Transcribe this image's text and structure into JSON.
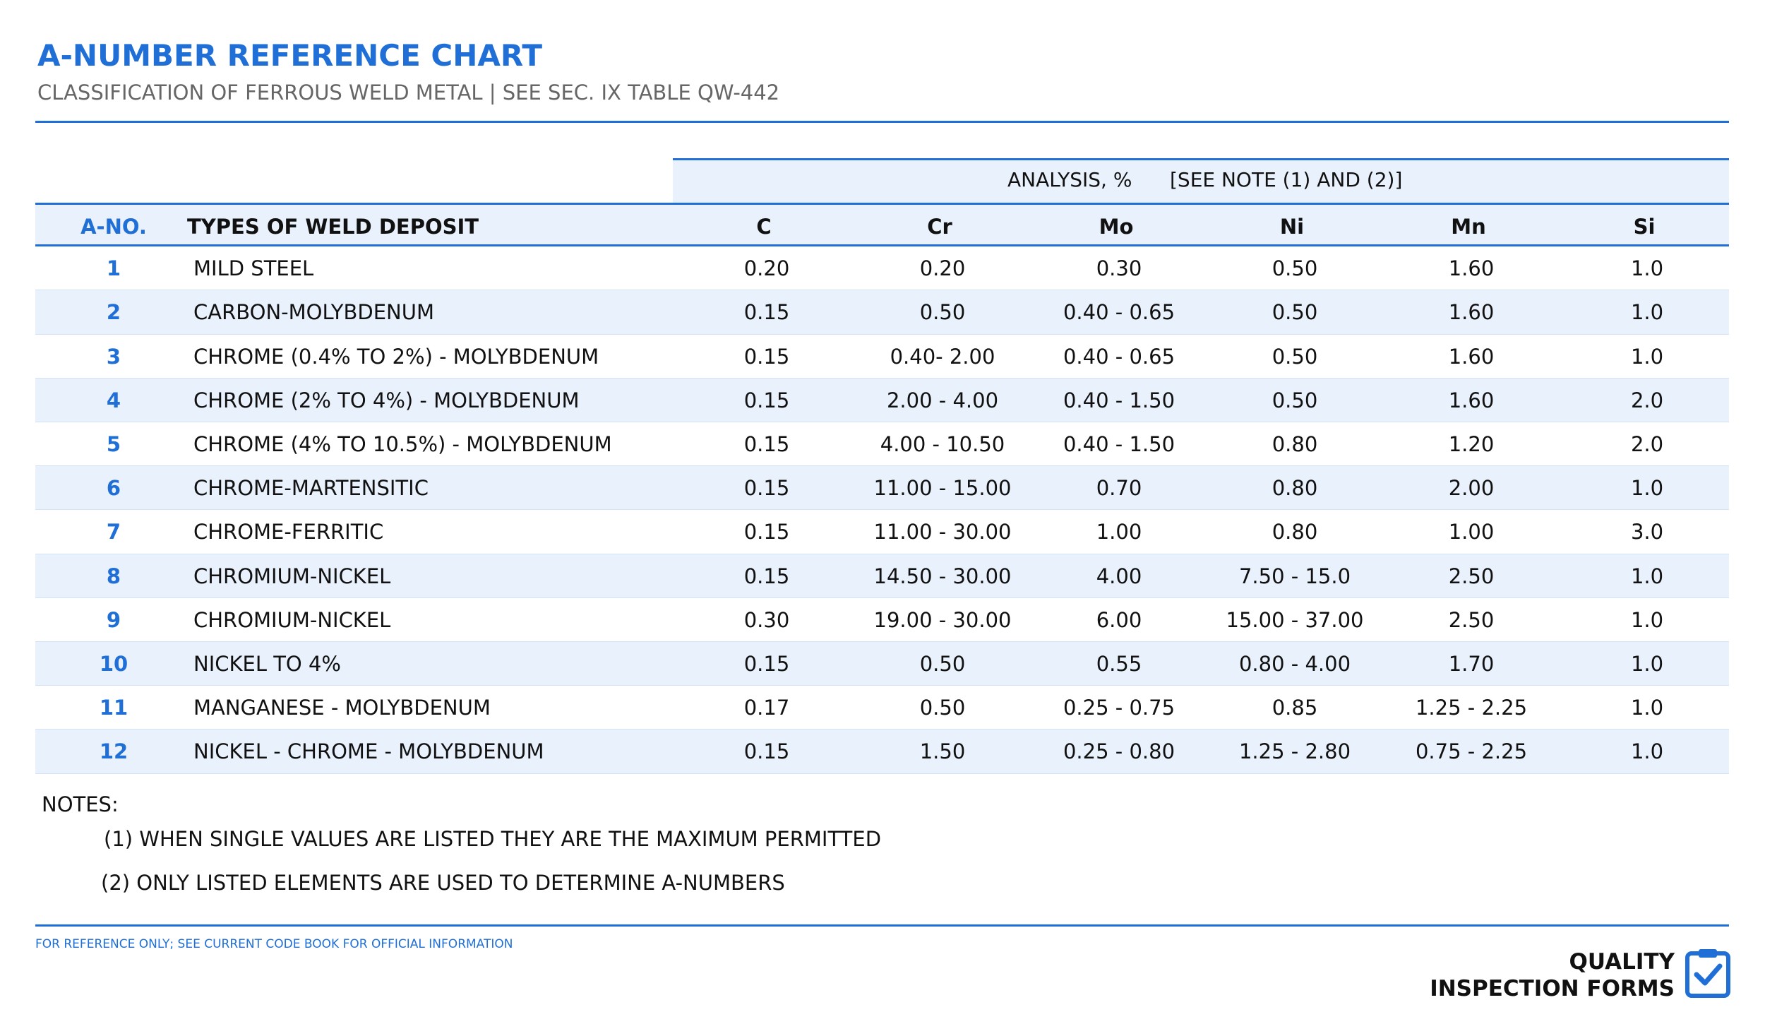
{
  "header": {
    "title": "A-NUMBER REFERENCE CHART",
    "subtitle": "CLASSIFICATION OF FERROUS WELD METAL | SEE SEC. IX TABLE QW-442"
  },
  "table": {
    "group_header": [
      "ANALYSIS, %",
      "[SEE NOTE (1) AND (2)]"
    ],
    "columns": [
      "A-NO.",
      "TYPES OF WELD DEPOSIT",
      "C",
      "Cr",
      "Mo",
      "Ni",
      "Mn",
      "Si"
    ],
    "rows": [
      [
        "1",
        "MILD STEEL",
        "0.20",
        "0.20",
        "0.30",
        "0.50",
        "1.60",
        "1.0"
      ],
      [
        "2",
        "CARBON-MOLYBDENUM",
        "0.15",
        "0.50",
        "0.40 - 0.65",
        "0.50",
        "1.60",
        "1.0"
      ],
      [
        "3",
        "CHROME (0.4% TO 2%) - MOLYBDENUM",
        "0.15",
        "0.40- 2.00",
        "0.40 - 0.65",
        "0.50",
        "1.60",
        "1.0"
      ],
      [
        "4",
        "CHROME (2% TO 4%) - MOLYBDENUM",
        "0.15",
        "2.00 - 4.00",
        "0.40 - 1.50",
        "0.50",
        "1.60",
        "2.0"
      ],
      [
        "5",
        "CHROME (4% TO 10.5%) - MOLYBDENUM",
        "0.15",
        "4.00 - 10.50",
        "0.40 - 1.50",
        "0.80",
        "1.20",
        "2.0"
      ],
      [
        "6",
        "CHROME-MARTENSITIC",
        "0.15",
        "11.00 - 15.00",
        "0.70",
        "0.80",
        "2.00",
        "1.0"
      ],
      [
        "7",
        "CHROME-FERRITIC",
        "0.15",
        "11.00 - 30.00",
        "1.00",
        "0.80",
        "1.00",
        "3.0"
      ],
      [
        "8",
        "CHROMIUM-NICKEL",
        "0.15",
        "14.50 - 30.00",
        "4.00",
        "7.50 - 15.0",
        "2.50",
        "1.0"
      ],
      [
        "9",
        "CHROMIUM-NICKEL",
        "0.30",
        "19.00 - 30.00",
        "6.00",
        "15.00 - 37.00",
        "2.50",
        "1.0"
      ],
      [
        "10",
        "NICKEL TO 4%",
        "0.15",
        "0.50",
        "0.55",
        "0.80 - 4.00",
        "1.70",
        "1.0"
      ],
      [
        "11",
        "MANGANESE - MOLYBDENUM",
        "0.17",
        "0.50",
        "0.25 - 0.75",
        "0.85",
        "1.25 - 2.25",
        "1.0"
      ],
      [
        "12",
        "NICKEL - CHROME - MOLYBDENUM",
        "0.15",
        "1.50",
        "0.25 - 0.80",
        "1.25 - 2.80",
        "0.75 - 2.25",
        "1.0"
      ]
    ]
  },
  "notes": {
    "title": "NOTES:",
    "items": [
      "(1) WHEN SINGLE VALUES ARE LISTED THEY ARE THE MAXIMUM PERMITTED",
      "(2) ONLY LISTED ELEMENTS ARE USED TO DETERMINE A-NUMBERS"
    ]
  },
  "footer": {
    "disclaimer": "FOR REFERENCE ONLY; SEE CURRENT CODE BOOK FOR OFFICIAL INFORMATION",
    "brand": [
      "QUALITY",
      "INSPECTION FORMS"
    ]
  }
}
